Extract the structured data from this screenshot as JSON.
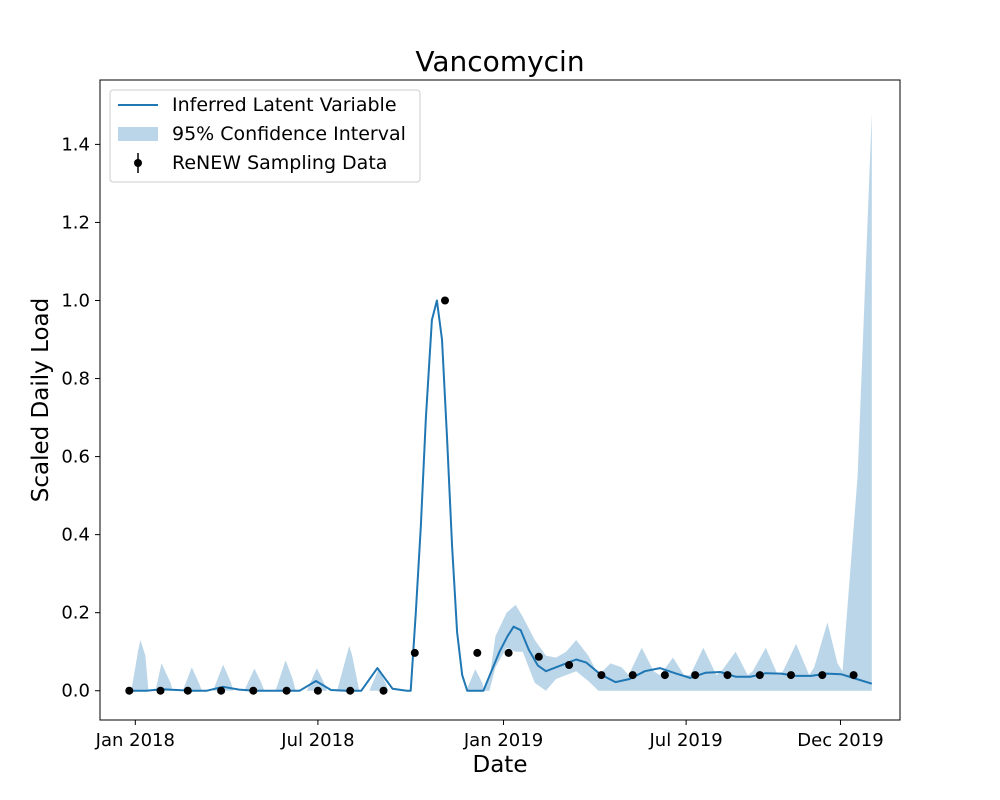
{
  "chart_data": {
    "type": "line",
    "title": "Vancomycin",
    "xlabel": "Date",
    "ylabel": "Scaled Daily Load",
    "xlim": [
      "2017-11-27",
      "2020-01-29"
    ],
    "ylim": [
      -0.075,
      1.565
    ],
    "grid": false,
    "legend_position": "top-left",
    "x_ticks": [
      {
        "date": "2018-01-01",
        "label": "Jan 2018"
      },
      {
        "date": "2018-07-01",
        "label": "Jul 2018"
      },
      {
        "date": "2019-01-01",
        "label": "Jan 2019"
      },
      {
        "date": "2019-07-01",
        "label": "Jul 2019"
      },
      {
        "date": "2019-12-01",
        "label": "Dec 2019"
      }
    ],
    "y_ticks": [
      {
        "value": 0.0,
        "label": "0.0"
      },
      {
        "value": 0.2,
        "label": "0.2"
      },
      {
        "value": 0.4,
        "label": "0.4"
      },
      {
        "value": 0.6,
        "label": "0.6"
      },
      {
        "value": 0.8,
        "label": "0.8"
      },
      {
        "value": 1.0,
        "label": "1.0"
      },
      {
        "value": 1.2,
        "label": "1.2"
      },
      {
        "value": 1.4,
        "label": "1.4"
      }
    ],
    "colors": {
      "line": "#1f77b4",
      "band": "#1f77b4",
      "band_opacity": 0.3,
      "points": "#000000"
    },
    "series": [
      {
        "name": "Inferred Latent Variable",
        "kind": "line",
        "points": [
          [
            "2017-12-28",
            0.0
          ],
          [
            "2018-01-12",
            0.0
          ],
          [
            "2018-01-27",
            0.004
          ],
          [
            "2018-02-11",
            0.002
          ],
          [
            "2018-02-26",
            0.0
          ],
          [
            "2018-03-13",
            0.0
          ],
          [
            "2018-03-29",
            0.01
          ],
          [
            "2018-04-14",
            0.003
          ],
          [
            "2018-04-29",
            0.0
          ],
          [
            "2018-05-14",
            0.0
          ],
          [
            "2018-05-29",
            0.0
          ],
          [
            "2018-06-13",
            0.0
          ],
          [
            "2018-06-29",
            0.025
          ],
          [
            "2018-07-14",
            0.002
          ],
          [
            "2018-07-29",
            0.0
          ],
          [
            "2018-08-13",
            0.0
          ],
          [
            "2018-08-29",
            0.058
          ],
          [
            "2018-09-13",
            0.005
          ],
          [
            "2018-09-27",
            0.0
          ],
          [
            "2018-10-01",
            0.0
          ],
          [
            "2018-10-06",
            0.2
          ],
          [
            "2018-10-11",
            0.42
          ],
          [
            "2018-10-16",
            0.7
          ],
          [
            "2018-10-22",
            0.95
          ],
          [
            "2018-10-27",
            1.0
          ],
          [
            "2018-11-01",
            0.9
          ],
          [
            "2018-11-06",
            0.65
          ],
          [
            "2018-11-11",
            0.37
          ],
          [
            "2018-11-16",
            0.15
          ],
          [
            "2018-11-21",
            0.04
          ],
          [
            "2018-11-26",
            0.0
          ],
          [
            "2018-12-12",
            0.0
          ],
          [
            "2018-12-20",
            0.05
          ],
          [
            "2018-12-28",
            0.1
          ],
          [
            "2019-01-05",
            0.14
          ],
          [
            "2019-01-11",
            0.164
          ],
          [
            "2019-01-18",
            0.155
          ],
          [
            "2019-01-26",
            0.105
          ],
          [
            "2019-02-04",
            0.065
          ],
          [
            "2019-02-12",
            0.05
          ],
          [
            "2019-02-22",
            0.06
          ],
          [
            "2019-03-04",
            0.07
          ],
          [
            "2019-03-14",
            0.08
          ],
          [
            "2019-03-24",
            0.072
          ],
          [
            "2019-04-07",
            0.042
          ],
          [
            "2019-04-22",
            0.022
          ],
          [
            "2019-05-06",
            0.03
          ],
          [
            "2019-05-21",
            0.05
          ],
          [
            "2019-06-05",
            0.058
          ],
          [
            "2019-06-20",
            0.045
          ],
          [
            "2019-07-05",
            0.033
          ],
          [
            "2019-07-20",
            0.046
          ],
          [
            "2019-08-04",
            0.048
          ],
          [
            "2019-08-19",
            0.036
          ],
          [
            "2019-09-03",
            0.036
          ],
          [
            "2019-09-18",
            0.045
          ],
          [
            "2019-10-03",
            0.044
          ],
          [
            "2019-10-18",
            0.038
          ],
          [
            "2019-11-02",
            0.038
          ],
          [
            "2019-11-17",
            0.044
          ],
          [
            "2019-12-02",
            0.042
          ],
          [
            "2019-12-17",
            0.03
          ],
          [
            "2020-01-01",
            0.018
          ]
        ]
      },
      {
        "name": "95% Confidence Interval",
        "kind": "band",
        "points": [
          [
            "2017-12-28",
            0.0,
            0.0
          ],
          [
            "2018-01-04",
            0.0,
            0.105
          ],
          [
            "2018-01-06",
            0.0,
            0.13
          ],
          [
            "2018-01-11",
            0.0,
            0.09
          ],
          [
            "2018-01-14",
            0.0,
            0.0
          ],
          [
            "2018-01-21",
            0.0,
            0.0
          ],
          [
            "2018-01-27",
            0.0,
            0.07
          ],
          [
            "2018-02-05",
            0.0,
            0.02
          ],
          [
            "2018-02-07",
            0.0,
            0.0
          ],
          [
            "2018-02-17",
            0.0,
            0.0
          ],
          [
            "2018-02-26",
            0.0,
            0.06
          ],
          [
            "2018-03-05",
            0.0,
            0.02
          ],
          [
            "2018-03-08",
            0.0,
            0.0
          ],
          [
            "2018-03-19",
            0.0,
            0.0
          ],
          [
            "2018-03-29",
            0.0,
            0.067
          ],
          [
            "2018-04-06",
            0.0,
            0.02
          ],
          [
            "2018-04-08",
            0.0,
            0.0
          ],
          [
            "2018-04-19",
            0.0,
            0.0
          ],
          [
            "2018-04-29",
            0.0,
            0.057
          ],
          [
            "2018-05-06",
            0.0,
            0.02
          ],
          [
            "2018-05-09",
            0.0,
            0.0
          ],
          [
            "2018-05-20",
            0.0,
            0.0
          ],
          [
            "2018-05-30",
            0.0,
            0.078
          ],
          [
            "2018-06-06",
            0.0,
            0.03
          ],
          [
            "2018-06-09",
            0.0,
            0.0
          ],
          [
            "2018-06-20",
            0.0,
            0.0
          ],
          [
            "2018-06-30",
            0.0,
            0.058
          ],
          [
            "2018-07-07",
            0.0,
            0.02
          ],
          [
            "2018-07-10",
            0.0,
            0.0
          ],
          [
            "2018-07-20",
            0.0,
            0.0
          ],
          [
            "2018-08-01",
            0.0,
            0.115
          ],
          [
            "2018-08-04",
            0.0,
            0.09
          ],
          [
            "2018-08-11",
            0.0,
            0.0
          ],
          [
            "2018-08-21",
            0.0,
            0.0
          ],
          [
            "2018-08-30",
            0.0,
            0.055
          ],
          [
            "2018-09-06",
            0.0,
            0.02
          ],
          [
            "2018-09-09",
            0.0,
            0.0
          ],
          [
            "2018-11-25",
            0.0,
            0.0
          ],
          [
            "2018-12-04",
            0.0,
            0.055
          ],
          [
            "2018-12-11",
            0.0,
            0.02
          ],
          [
            "2018-12-13",
            0.0,
            0.0
          ],
          [
            "2018-12-18",
            0.0,
            0.03
          ],
          [
            "2018-12-24",
            0.06,
            0.14
          ],
          [
            "2019-01-04",
            0.11,
            0.2
          ],
          [
            "2019-01-13",
            0.1,
            0.22
          ],
          [
            "2019-01-20",
            0.1,
            0.19
          ],
          [
            "2019-02-01",
            0.02,
            0.13
          ],
          [
            "2019-02-12",
            0.0,
            0.09
          ],
          [
            "2019-02-22",
            0.03,
            0.085
          ],
          [
            "2019-03-04",
            0.04,
            0.1
          ],
          [
            "2019-03-14",
            0.05,
            0.13
          ],
          [
            "2019-03-26",
            0.025,
            0.09
          ],
          [
            "2019-04-05",
            0.0,
            0.04
          ],
          [
            "2019-04-17",
            0.0,
            0.07
          ],
          [
            "2019-04-28",
            0.0,
            0.06
          ],
          [
            "2019-05-05",
            0.0,
            0.04
          ],
          [
            "2019-05-18",
            0.0,
            0.11
          ],
          [
            "2019-05-30",
            0.0,
            0.05
          ],
          [
            "2019-06-05",
            0.0,
            0.04
          ],
          [
            "2019-06-18",
            0.0,
            0.085
          ],
          [
            "2019-06-29",
            0.0,
            0.04
          ],
          [
            "2019-07-05",
            0.0,
            0.04
          ],
          [
            "2019-07-18",
            0.0,
            0.11
          ],
          [
            "2019-07-31",
            0.0,
            0.04
          ],
          [
            "2019-08-05",
            0.0,
            0.05
          ],
          [
            "2019-08-19",
            0.0,
            0.1
          ],
          [
            "2019-08-31",
            0.0,
            0.04
          ],
          [
            "2019-09-05",
            0.0,
            0.05
          ],
          [
            "2019-09-18",
            0.0,
            0.11
          ],
          [
            "2019-09-30",
            0.0,
            0.04
          ],
          [
            "2019-10-05",
            0.0,
            0.05
          ],
          [
            "2019-10-18",
            0.0,
            0.12
          ],
          [
            "2019-10-31",
            0.0,
            0.04
          ],
          [
            "2019-11-05",
            0.0,
            0.06
          ],
          [
            "2019-11-18",
            0.0,
            0.175
          ],
          [
            "2019-11-28",
            0.0,
            0.07
          ],
          [
            "2019-12-03",
            0.0,
            0.05
          ],
          [
            "2019-12-18",
            0.0,
            0.55
          ],
          [
            "2020-01-01",
            0.0,
            1.48
          ]
        ]
      },
      {
        "name": "ReNEW Sampling Data",
        "kind": "scatter",
        "points": [
          [
            "2017-12-26",
            0.0
          ],
          [
            "2018-01-26",
            0.0
          ],
          [
            "2018-02-22",
            0.0
          ],
          [
            "2018-03-27",
            0.0
          ],
          [
            "2018-04-28",
            0.0
          ],
          [
            "2018-05-31",
            0.0
          ],
          [
            "2018-07-01",
            0.0
          ],
          [
            "2018-08-02",
            0.0
          ],
          [
            "2018-09-04",
            0.0
          ],
          [
            "2018-10-05",
            0.097
          ],
          [
            "2018-11-04",
            1.0
          ],
          [
            "2018-12-06",
            0.097
          ],
          [
            "2019-01-06",
            0.097
          ],
          [
            "2019-02-05",
            0.087
          ],
          [
            "2019-03-07",
            0.066
          ],
          [
            "2019-04-08",
            0.04
          ],
          [
            "2019-05-09",
            0.04
          ],
          [
            "2019-06-10",
            0.04
          ],
          [
            "2019-07-10",
            0.04
          ],
          [
            "2019-08-11",
            0.04
          ],
          [
            "2019-09-12",
            0.04
          ],
          [
            "2019-10-13",
            0.04
          ],
          [
            "2019-11-13",
            0.04
          ],
          [
            "2019-12-14",
            0.04
          ]
        ]
      }
    ]
  }
}
